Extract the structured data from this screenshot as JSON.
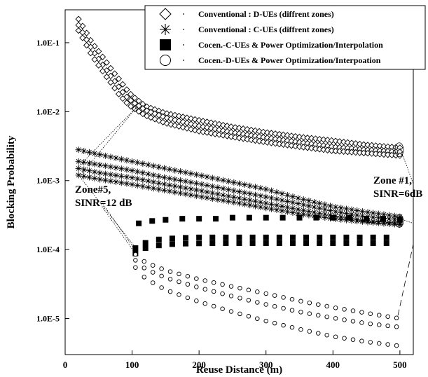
{
  "chart_data": {
    "type": "scatter",
    "title": "",
    "xlabel": "Reuse Distance (m)",
    "ylabel": "Blocking Probability",
    "xlim": [
      0,
      520
    ],
    "ylim": [
      3e-06,
      0.3
    ],
    "y_scale": "log",
    "x_ticks": [
      "0",
      "100",
      "200",
      "300",
      "400",
      "500"
    ],
    "y_ticks": [
      "1.0E-1",
      "1.0E-2",
      "1.0E-3",
      "1.0E-4",
      "1.0E-5"
    ],
    "grid": false,
    "legend_position": "top-right",
    "series": [
      {
        "name": "Conventional : D-UEs (diffrent zones)",
        "marker": "diamond",
        "color": "#000000",
        "curves": [
          {
            "x": [
              20,
              30,
              40,
              50,
              60,
              70,
              80,
              90,
              100,
              120,
              150,
              200,
              250,
              300,
              350,
              400,
              450,
              500
            ],
            "y": [
              0.22,
              0.15,
              0.1,
              0.075,
              0.055,
              0.04,
              0.03,
              0.022,
              0.017,
              0.012,
              0.0095,
              0.0075,
              0.006,
              0.005,
              0.0043,
              0.0038,
              0.0033,
              0.003
            ]
          },
          {
            "x": [
              20,
              30,
              40,
              50,
              60,
              70,
              80,
              90,
              100,
              120,
              150,
              200,
              250,
              300,
              350,
              400,
              450,
              500
            ],
            "y": [
              0.18,
              0.12,
              0.08,
              0.058,
              0.042,
              0.031,
              0.023,
              0.017,
              0.014,
              0.0105,
              0.0082,
              0.0062,
              0.005,
              0.0042,
              0.0036,
              0.0031,
              0.0028,
              0.0026
            ]
          },
          {
            "x": [
              20,
              30,
              40,
              50,
              60,
              70,
              80,
              90,
              100,
              120,
              150,
              200,
              250,
              300,
              350,
              400,
              450,
              500
            ],
            "y": [
              0.15,
              0.1,
              0.065,
              0.047,
              0.034,
              0.025,
              0.018,
              0.014,
              0.0115,
              0.0088,
              0.0068,
              0.0052,
              0.0043,
              0.0036,
              0.0031,
              0.0027,
              0.0025,
              0.0023
            ]
          }
        ]
      },
      {
        "name": "Conventional : C-UEs (diffrent zones)",
        "marker": "asterisk",
        "color": "#000000",
        "curves": [
          {
            "x": [
              20,
              50,
              100,
              150,
              200,
              250,
              300,
              350,
              400,
              450,
              500
            ],
            "y": [
              0.0028,
              0.0024,
              0.0019,
              0.0015,
              0.0012,
              0.00095,
              0.00075,
              0.00055,
              0.00042,
              0.00035,
              0.0003
            ]
          },
          {
            "x": [
              20,
              50,
              100,
              150,
              200,
              250,
              300,
              350,
              400,
              450,
              500
            ],
            "y": [
              0.0019,
              0.0017,
              0.0014,
              0.0011,
              0.0009,
              0.00072,
              0.00058,
              0.00046,
              0.00036,
              0.0003,
              0.00027
            ]
          },
          {
            "x": [
              20,
              50,
              100,
              150,
              200,
              250,
              300,
              350,
              400,
              450,
              500
            ],
            "y": [
              0.0015,
              0.0013,
              0.0011,
              0.00088,
              0.00072,
              0.00058,
              0.00047,
              0.00038,
              0.00031,
              0.00026,
              0.00024
            ]
          },
          {
            "x": [
              20,
              50,
              100,
              150,
              200,
              250,
              300,
              350,
              400,
              450,
              500
            ],
            "y": [
              0.0012,
              0.00105,
              0.00088,
              0.00072,
              0.00059,
              0.00049,
              0.0004,
              0.00033,
              0.00028,
              0.00025,
              0.00023
            ]
          }
        ]
      },
      {
        "name": "Cocen.-C-UEs & Power Optimization/Interpolation",
        "marker": "square",
        "color": "#000000",
        "curves": [
          {
            "x": [
              110,
              130,
              150,
              175,
              200,
              225,
              250,
              275,
              300,
              325,
              350,
              375,
              400,
              425,
              450,
              475,
              500
            ],
            "y": [
              0.00024,
              0.00026,
              0.00027,
              0.00028,
              0.00028,
              0.00028,
              0.00029,
              0.00029,
              0.00029,
              0.00029,
              0.00029,
              0.00029,
              0.00029,
              0.00029,
              0.00028,
              0.00028,
              0.00027
            ]
          },
          {
            "x": [
              105,
              120,
              140,
              160,
              180,
              200,
              220,
              240,
              260,
              280,
              300,
              320,
              340,
              360,
              380,
              400,
              420,
              440,
              460,
              480
            ],
            "y": [
              0.000105,
              0.000125,
              0.00014,
              0.000145,
              0.000148,
              0.00015,
              0.00015,
              0.00015,
              0.00015,
              0.00015,
              0.00015,
              0.00015,
              0.00015,
              0.00015,
              0.00015,
              0.00015,
              0.00015,
              0.00015,
              0.00015,
              0.00015
            ]
          },
          {
            "x": [
              105,
              120,
              140,
              160,
              180,
              200,
              220,
              240,
              260,
              280,
              300,
              320,
              340,
              360,
              380,
              400,
              420,
              440,
              460,
              480
            ],
            "y": [
              8.8e-05,
              0.000105,
              0.000115,
              0.00012,
              0.000122,
              0.000123,
              0.000124,
              0.000124,
              0.000124,
              0.000124,
              0.000124,
              0.000124,
              0.000124,
              0.000124,
              0.000124,
              0.000124,
              0.000124,
              0.000124,
              0.000124,
              0.000124
            ]
          }
        ]
      },
      {
        "name": "Cocen.-D-UEs & Power Optimization/Interpoation",
        "marker": "circle",
        "color": "#000000",
        "curves": [
          {
            "x": [
              105,
              120,
              150,
              200,
              250,
              300,
              350,
              400,
              450,
              500
            ],
            "y": [
              8.5e-05,
              6.5e-05,
              5e-05,
              3.7e-05,
              2.9e-05,
              2.3e-05,
              1.8e-05,
              1.45e-05,
              1.2e-05,
              1e-05
            ]
          },
          {
            "x": [
              105,
              120,
              150,
              200,
              250,
              300,
              350,
              400,
              450,
              500
            ],
            "y": [
              7e-05,
              5.2e-05,
              3.9e-05,
              2.8e-05,
              2.1e-05,
              1.6e-05,
              1.25e-05,
              1.02e-05,
              8.5e-06,
              7.5e-06
            ]
          },
          {
            "x": [
              105,
              120,
              150,
              200,
              250,
              300,
              350,
              400,
              450,
              500
            ],
            "y": [
              5.5e-05,
              3.8e-05,
              2.6e-05,
              1.75e-05,
              1.25e-05,
              9.2e-06,
              7e-06,
              5.5e-06,
              4.6e-06,
              4e-06
            ]
          }
        ]
      }
    ],
    "annotations": [
      {
        "lines": [
          "Zone#5,",
          "SINR=12  dB"
        ]
      },
      {
        "lines": [
          "Zone #1,",
          "SINR=6dB"
        ]
      }
    ]
  }
}
